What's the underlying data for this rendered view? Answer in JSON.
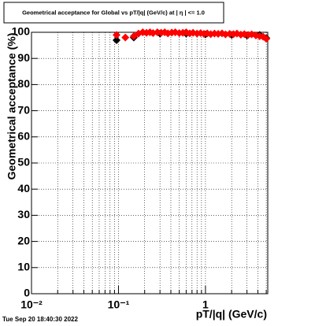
{
  "chart_data": {
    "type": "scatter",
    "title": "Geometrical acceptance for Global vs pT/|q| (GeV/c) at |  η  | <= 1.0",
    "x_label": "pT/|q| (GeV/c)",
    "y_label": "Geometrical acceptance (%)",
    "timestamp": "Tue Sep 20 18:40:30 2022",
    "xlog": true,
    "xlim": [
      0.01,
      5.2
    ],
    "ylim": [
      0,
      100
    ],
    "xticks": [
      {
        "value": 0.01,
        "label": "10⁻²"
      },
      {
        "value": 0.1,
        "label": "10⁻¹"
      },
      1
    ],
    "xminor": [
      0.02,
      0.03,
      0.04,
      0.05,
      0.06,
      0.07,
      0.08,
      0.09,
      0.2,
      0.3,
      0.4,
      0.5,
      0.6,
      0.7,
      0.8,
      0.9,
      2,
      3,
      4,
      5
    ],
    "yticks": [
      0,
      10,
      20,
      30,
      40,
      50,
      60,
      70,
      80,
      90,
      100
    ],
    "grid": true,
    "series": [
      {
        "color": "#000000",
        "x": [
          0.095,
          0.15,
          0.3,
          0.6,
          1.0,
          2.0,
          3.0,
          4.2,
          5.0
        ],
        "values": [
          97,
          98,
          99.5,
          99.5,
          99.2,
          99,
          98.8,
          99,
          97.8
        ]
      },
      {
        "color": "#ff0000",
        "x": [
          0.095,
          0.12,
          0.15,
          0.17,
          0.19,
          0.21,
          0.23,
          0.25,
          0.28,
          0.31,
          0.34,
          0.37,
          0.41,
          0.45,
          0.5,
          0.55,
          0.6,
          0.66,
          0.72,
          0.8,
          0.88,
          0.96,
          1.05,
          1.15,
          1.27,
          1.4,
          1.55,
          1.7,
          1.9,
          2.1,
          2.3,
          2.55,
          2.8,
          3.1,
          3.4,
          3.8,
          4.2,
          4.6,
          5.0
        ],
        "values": [
          99,
          98,
          98.5,
          99.5,
          100,
          99.8,
          100,
          99.7,
          100,
          99.8,
          100,
          99.6,
          99.9,
          100,
          99.7,
          99.8,
          100,
          99.6,
          99.8,
          99.5,
          99.7,
          99.4,
          99.6,
          99.3,
          99.5,
          99.4,
          99.6,
          99.2,
          99.4,
          99.3,
          99.5,
          99.1,
          99.3,
          99,
          99.2,
          98.8,
          98.5,
          98.3,
          97.5
        ]
      }
    ]
  }
}
